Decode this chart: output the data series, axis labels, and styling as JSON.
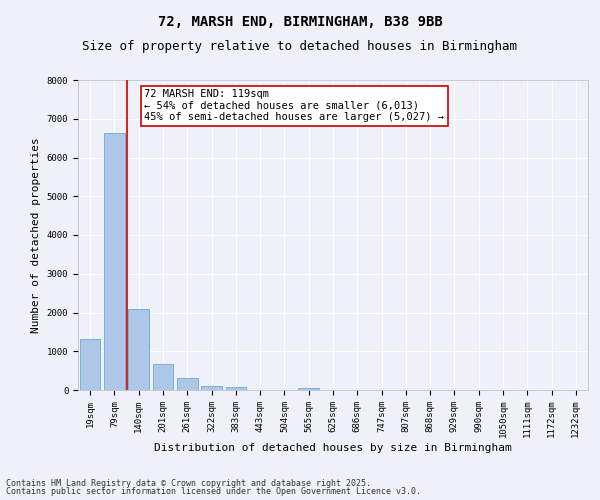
{
  "title1": "72, MARSH END, BIRMINGHAM, B38 9BB",
  "title2": "Size of property relative to detached houses in Birmingham",
  "xlabel": "Distribution of detached houses by size in Birmingham",
  "ylabel": "Number of detached properties",
  "categories": [
    "19sqm",
    "79sqm",
    "140sqm",
    "201sqm",
    "261sqm",
    "322sqm",
    "383sqm",
    "443sqm",
    "504sqm",
    "565sqm",
    "625sqm",
    "686sqm",
    "747sqm",
    "807sqm",
    "868sqm",
    "929sqm",
    "990sqm",
    "1050sqm",
    "1111sqm",
    "1172sqm",
    "1232sqm"
  ],
  "values": [
    1310,
    6630,
    2080,
    660,
    300,
    115,
    70,
    0,
    0,
    50,
    0,
    0,
    0,
    0,
    0,
    0,
    0,
    0,
    0,
    0,
    0
  ],
  "bar_color": "#aec6e8",
  "bar_edge_color": "#5a9fd4",
  "vline_color": "#cc0000",
  "vline_x_index": 1.5,
  "ylim": [
    0,
    8000
  ],
  "yticks": [
    0,
    1000,
    2000,
    3000,
    4000,
    5000,
    6000,
    7000,
    8000
  ],
  "annotation_text": "72 MARSH END: 119sqm\n← 54% of detached houses are smaller (6,013)\n45% of semi-detached houses are larger (5,027) →",
  "annotation_box_color": "#ffffff",
  "annotation_border_color": "#cc0000",
  "footer1": "Contains HM Land Registry data © Crown copyright and database right 2025.",
  "footer2": "Contains public sector information licensed under the Open Government Licence v3.0.",
  "bg_color": "#eef2f8",
  "plot_bg_color": "#eef2f8",
  "grid_color": "#ffffff",
  "title_fontsize": 10,
  "subtitle_fontsize": 9,
  "tick_fontsize": 6.5,
  "ylabel_fontsize": 8,
  "xlabel_fontsize": 8,
  "annotation_fontsize": 7.5,
  "footer_fontsize": 6
}
